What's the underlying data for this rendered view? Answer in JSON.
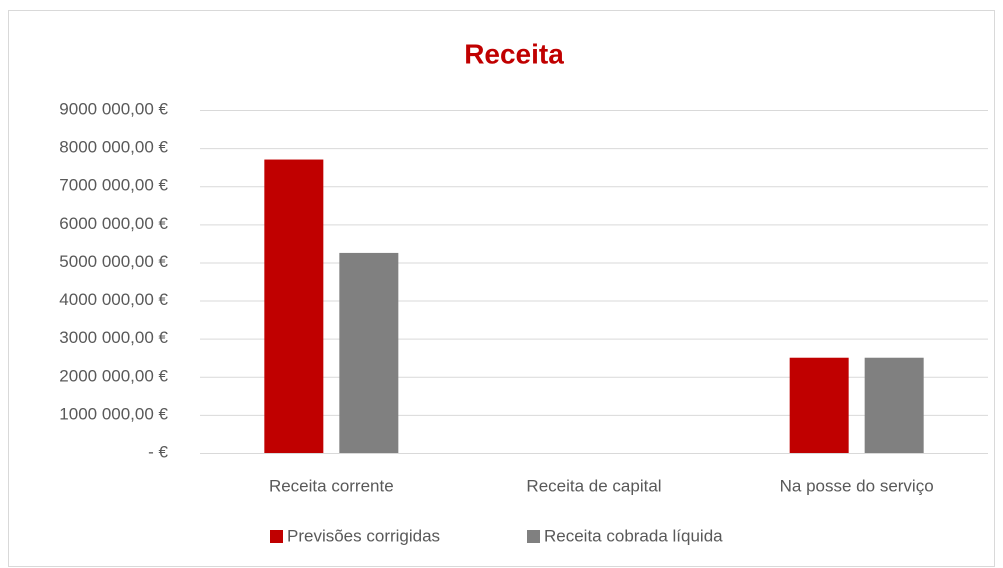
{
  "chart_data": {
    "type": "bar",
    "title": "Receita",
    "categories": [
      "Receita corrente",
      "Receita de capital",
      "Na posse do serviço"
    ],
    "series": [
      {
        "name": "Previsões corrigidas",
        "color": "#c00000",
        "values": [
          7700000,
          0,
          2500000
        ]
      },
      {
        "name": "Receita cobrada líquida",
        "color": "#808080",
        "values": [
          5250000,
          0,
          2500000
        ]
      }
    ],
    "ylim": [
      0,
      9000000
    ],
    "yticks": [
      {
        "value": 0,
        "label": "-   €"
      },
      {
        "value": 1000000,
        "label": "1000 000,00 €"
      },
      {
        "value": 2000000,
        "label": "2000 000,00 €"
      },
      {
        "value": 3000000,
        "label": "3000 000,00 €"
      },
      {
        "value": 4000000,
        "label": "4000 000,00 €"
      },
      {
        "value": 5000000,
        "label": "5000 000,00 €"
      },
      {
        "value": 6000000,
        "label": "6000 000,00 €"
      },
      {
        "value": 7000000,
        "label": "7000 000,00 €"
      },
      {
        "value": 8000000,
        "label": "8000 000,00 €"
      },
      {
        "value": 9000000,
        "label": "9000 000,00 €"
      }
    ],
    "grid": true,
    "legend": "bottom"
  }
}
